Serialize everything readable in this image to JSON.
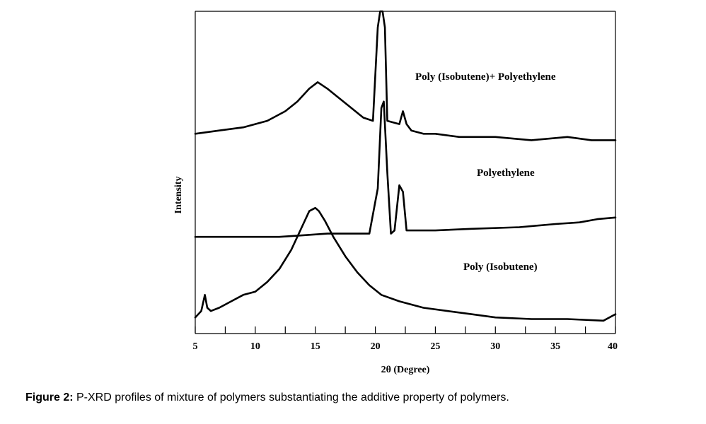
{
  "chart_data": {
    "type": "line",
    "xlabel": "2θ (Degree)",
    "ylabel": "Intensity",
    "xlim": [
      5,
      40
    ],
    "xticks": [
      5,
      10,
      15,
      20,
      25,
      30,
      35,
      40
    ],
    "xtick_labels": [
      "5",
      "10",
      "15",
      "20",
      "25",
      "30",
      "35",
      "40"
    ],
    "yticks_shown": false,
    "grid": false,
    "series": [
      {
        "name": "Poly (Isobutene)+ Polyethylene",
        "x": [
          5,
          7,
          9,
          11,
          12.5,
          13.5,
          14.5,
          15.2,
          16,
          17,
          18,
          19,
          19.8,
          20.2,
          20.4,
          20.6,
          20.8,
          21,
          22,
          22.3,
          22.6,
          23,
          24,
          25,
          27,
          30,
          33,
          36,
          38,
          40
        ],
        "y": [
          0.62,
          0.63,
          0.64,
          0.66,
          0.69,
          0.72,
          0.76,
          0.78,
          0.76,
          0.73,
          0.7,
          0.67,
          0.66,
          0.95,
          1.0,
          1.0,
          0.95,
          0.66,
          0.65,
          0.69,
          0.65,
          0.63,
          0.62,
          0.62,
          0.61,
          0.61,
          0.6,
          0.61,
          0.6,
          0.6
        ]
      },
      {
        "name": "Polyethylene",
        "x": [
          5,
          8,
          10,
          12,
          14,
          16,
          18,
          19.5,
          20.2,
          20.5,
          20.7,
          21,
          21.3,
          21.6,
          22,
          22.3,
          22.6,
          23,
          25,
          28,
          32,
          35,
          37,
          38.5,
          40
        ],
        "y": [
          0.3,
          0.3,
          0.3,
          0.3,
          0.305,
          0.31,
          0.31,
          0.31,
          0.45,
          0.7,
          0.72,
          0.5,
          0.31,
          0.32,
          0.46,
          0.44,
          0.32,
          0.32,
          0.32,
          0.325,
          0.33,
          0.34,
          0.345,
          0.355,
          0.36
        ]
      },
      {
        "name": "Poly (Isobutene)",
        "x": [
          5,
          5.5,
          5.8,
          6,
          6.3,
          7,
          8,
          9,
          10,
          11,
          12,
          13,
          14,
          14.5,
          15,
          15.3,
          15.8,
          16.5,
          17.5,
          18.5,
          19.5,
          20.5,
          22,
          24,
          26,
          28,
          30,
          33,
          36,
          39,
          40
        ],
        "y": [
          0.05,
          0.07,
          0.12,
          0.08,
          0.07,
          0.08,
          0.1,
          0.12,
          0.13,
          0.16,
          0.2,
          0.26,
          0.34,
          0.38,
          0.39,
          0.38,
          0.35,
          0.3,
          0.24,
          0.19,
          0.15,
          0.12,
          0.1,
          0.08,
          0.07,
          0.06,
          0.05,
          0.045,
          0.045,
          0.04,
          0.06
        ]
      }
    ]
  },
  "caption": {
    "label": "Figure 2:",
    "text": " P-XRD profiles of mixture of polymers substantiating the additive property of polymers."
  }
}
